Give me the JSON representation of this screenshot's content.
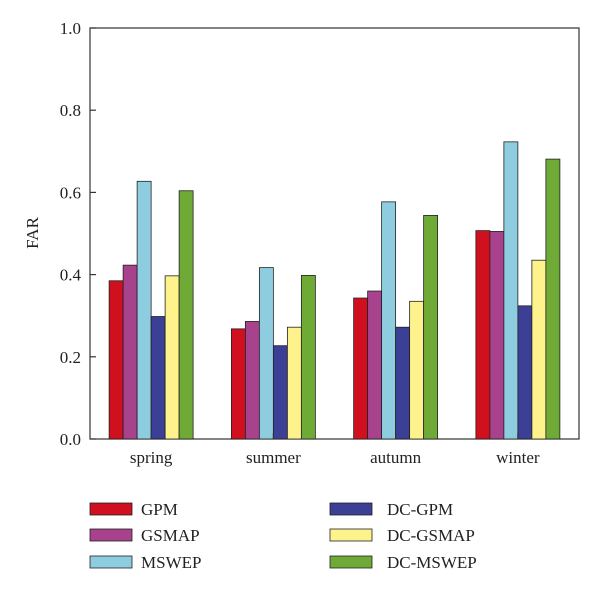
{
  "chart_data": {
    "type": "bar",
    "ylabel": "FAR",
    "xlabel": "",
    "title": "",
    "ylim": [
      0,
      1.0
    ],
    "yticks": [
      "0.0",
      "0.2",
      "0.4",
      "0.6",
      "0.8",
      "1.0"
    ],
    "categories": [
      "spring",
      "summer",
      "autumn",
      "winter"
    ],
    "series": [
      {
        "name": "GPM",
        "color": "#d0101e",
        "values": [
          0.385,
          0.268,
          0.343,
          0.507
        ]
      },
      {
        "name": "GSMAP",
        "color": "#a8428c",
        "values": [
          0.423,
          0.286,
          0.36,
          0.505
        ]
      },
      {
        "name": "MSWEP",
        "color": "#8ecde0",
        "values": [
          0.627,
          0.417,
          0.577,
          0.723
        ]
      },
      {
        "name": "DC-GPM",
        "color": "#3b3f95",
        "values": [
          0.298,
          0.227,
          0.272,
          0.324
        ]
      },
      {
        "name": "DC-GSMAP",
        "color": "#fdf28c",
        "values": [
          0.397,
          0.272,
          0.335,
          0.435
        ]
      },
      {
        "name": "DC-MSWEP",
        "color": "#70aa36",
        "values": [
          0.604,
          0.398,
          0.544,
          0.681
        ]
      }
    ],
    "grid": false,
    "legend_position": "bottom, two columns"
  }
}
